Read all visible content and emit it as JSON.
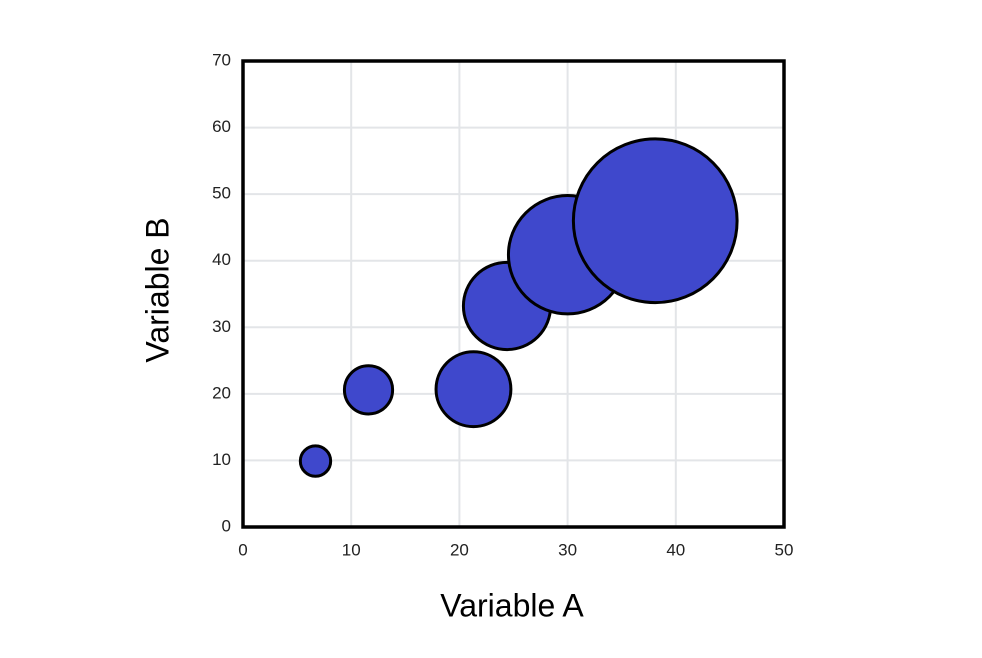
{
  "chart_data": {
    "type": "bubble",
    "x_label": "Variable A",
    "y_label": "Variable B",
    "series": [
      {
        "color": "#3f48cc",
        "x": [
          6.7,
          11.6,
          21.3,
          24.4,
          30.0,
          38.1
        ],
        "values": [
          9.9,
          20.6,
          20.7,
          33.2,
          40.9,
          46.0
        ],
        "sizes": [
          2.3,
          5.8,
          14,
          19,
          35,
          67
        ]
      }
    ],
    "xlim": [
      0,
      50
    ],
    "xticks": [
      0,
      10,
      20,
      30,
      40,
      50
    ],
    "ylim": [
      0,
      70
    ],
    "yticks": [
      0,
      10,
      20,
      30,
      40,
      50,
      60,
      70
    ],
    "grid": true
  }
}
